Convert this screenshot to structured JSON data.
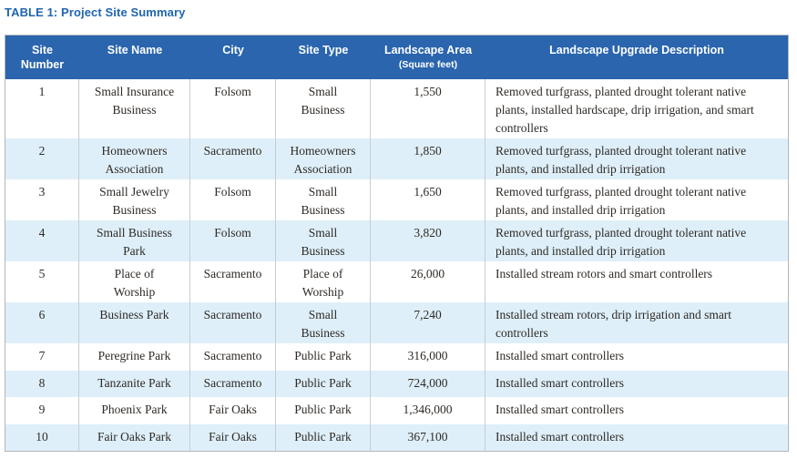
{
  "title": "TABLE 1: Project Site Summary",
  "colors": {
    "title_blue": "#2065ae",
    "header_background": "#2a65ae",
    "header_text": "#ffffff",
    "row_alternate_blue": "#deeff9",
    "row_white": "#ffffff",
    "body_text": "#2f2a26",
    "outer_border": "#b3b5b7",
    "column_separator": "#c9cccf"
  },
  "table": {
    "columns": [
      {
        "id": "number",
        "label": "Site\nNumber"
      },
      {
        "id": "name",
        "label": "Site Name"
      },
      {
        "id": "city",
        "label": "City"
      },
      {
        "id": "type",
        "label": "Site Type"
      },
      {
        "id": "area",
        "label": "Landscape Area",
        "sublabel": "(Square feet)"
      },
      {
        "id": "description",
        "label": "Landscape Upgrade Description"
      }
    ],
    "rows": [
      {
        "number": "1",
        "name": "Small Insurance\nBusiness",
        "city": "Folsom",
        "type": "Small\nBusiness",
        "area": "1,550",
        "description": "Removed turfgrass, planted drought tolerant native\nplants, installed hardscape, drip irrigation, and smart\ncontrollers"
      },
      {
        "number": "2",
        "name": "Homeowners\nAssociation",
        "city": "Sacramento",
        "type": "Homeowners\nAssociation",
        "area": "1,850",
        "description": "Removed turfgrass, planted drought tolerant native\nplants, and installed drip irrigation"
      },
      {
        "number": "3",
        "name": "Small Jewelry\nBusiness",
        "city": "Folsom",
        "type": "Small\nBusiness",
        "area": "1,650",
        "description": "Removed turfgrass, planted drought tolerant native\nplants, and installed drip irrigation"
      },
      {
        "number": "4",
        "name": "Small Business\nPark",
        "city": "Folsom",
        "type": "Small\nBusiness",
        "area": "3,820",
        "description": "Removed turfgrass, planted drought tolerant native\nplants, and installed drip irrigation"
      },
      {
        "number": "5",
        "name": "Place of\nWorship",
        "city": "Sacramento",
        "type": "Place of\nWorship",
        "area": "26,000",
        "description": "Installed stream rotors and smart controllers"
      },
      {
        "number": "6",
        "name": "Business Park",
        "city": "Sacramento",
        "type": "Small\nBusiness",
        "area": "7,240",
        "description": "Installed stream rotors, drip irrigation and smart\ncontrollers"
      },
      {
        "number": "7",
        "name": "Peregrine Park",
        "city": "Sacramento",
        "type": "Public Park",
        "area": "316,000",
        "description": "Installed smart controllers"
      },
      {
        "number": "8",
        "name": "Tanzanite Park",
        "city": "Sacramento",
        "type": "Public Park",
        "area": "724,000",
        "description": "Installed smart controllers"
      },
      {
        "number": "9",
        "name": "Phoenix Park",
        "city": "Fair Oaks",
        "type": "Public Park",
        "area": "1,346,000",
        "description": "Installed smart controllers"
      },
      {
        "number": "10",
        "name": "Fair Oaks Park",
        "city": "Fair Oaks",
        "type": "Public Park",
        "area": "367,100",
        "description": "Installed smart controllers"
      }
    ]
  }
}
